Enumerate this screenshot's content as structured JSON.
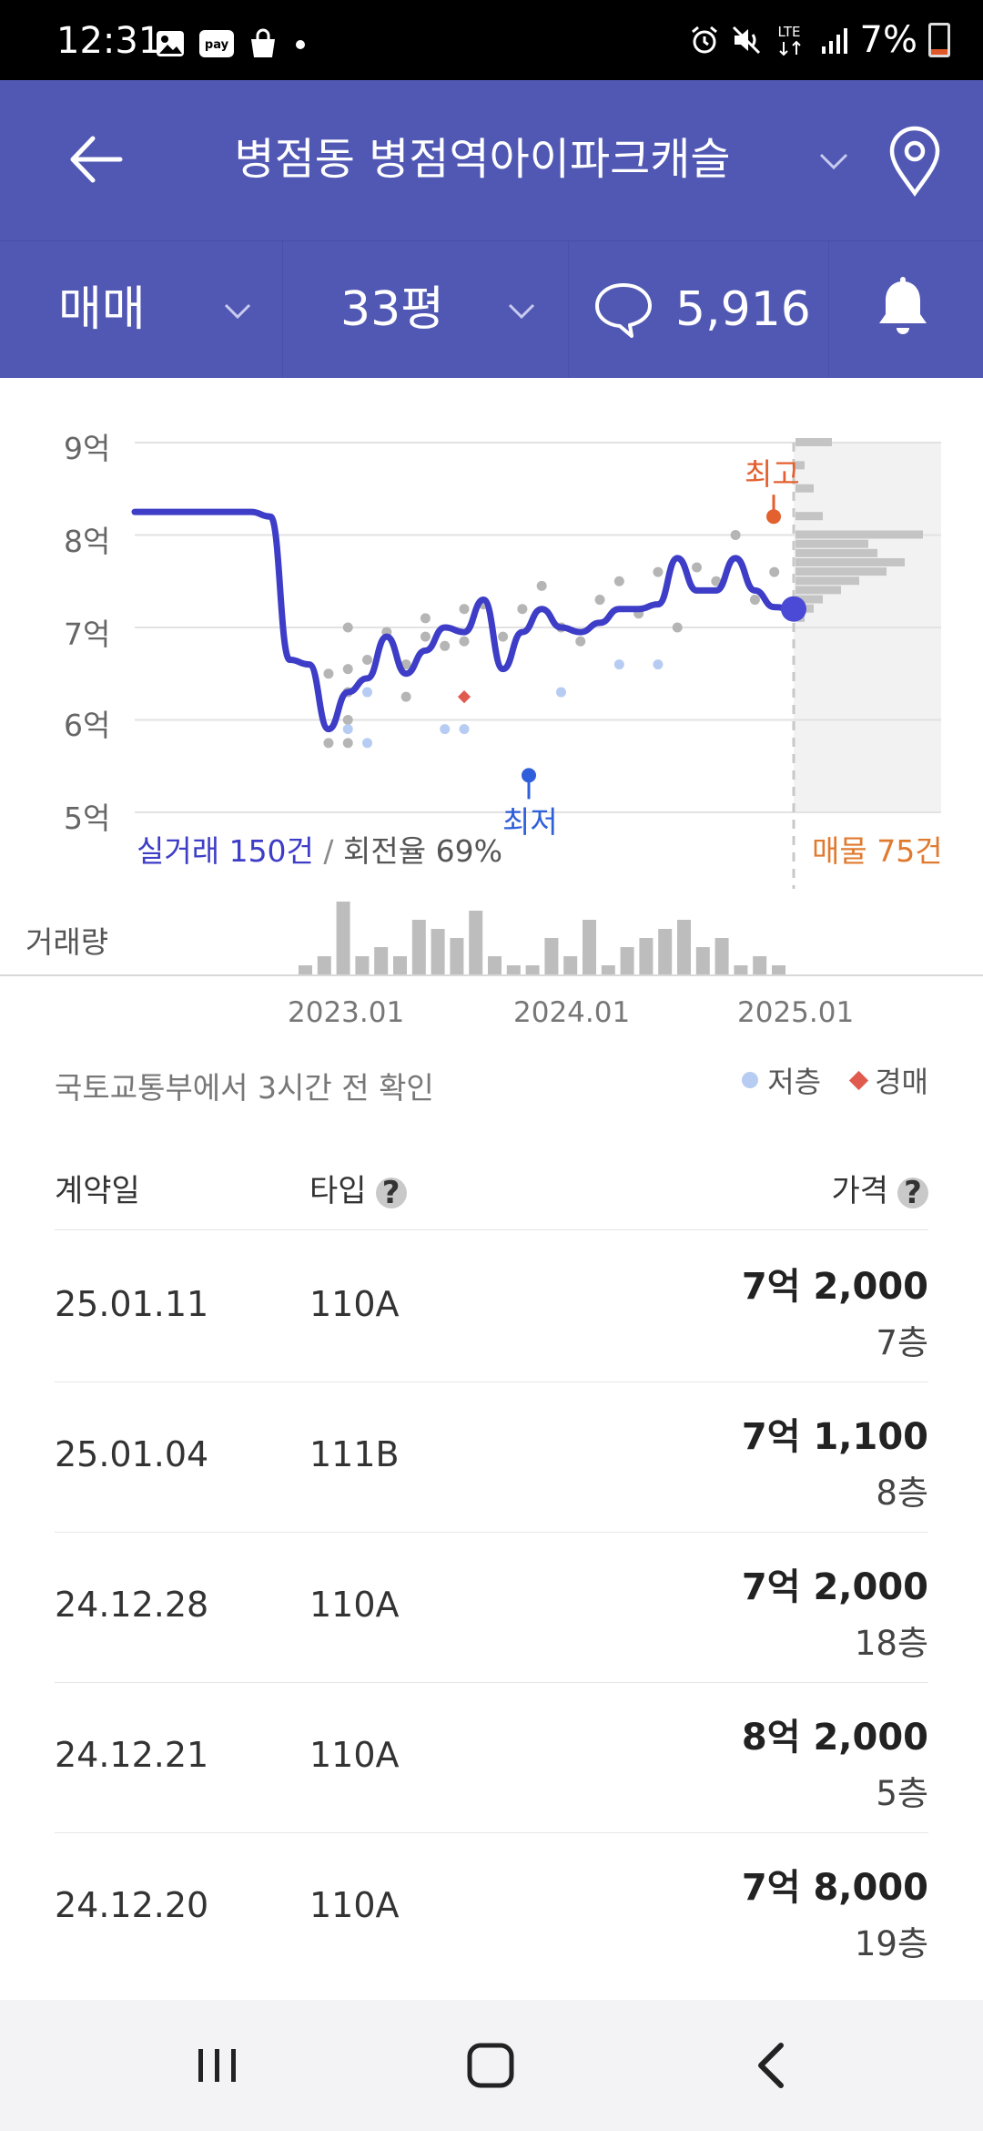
{
  "status_bar": {
    "time": "12:31",
    "battery": "7%",
    "network": "LTE",
    "icons_left": [
      "image-icon",
      "pay-icon",
      "shopping-bag-icon",
      "dot-icon"
    ],
    "pay_text": "pay",
    "icons_right": [
      "alarm-icon",
      "mute-icon",
      "lte-icon",
      "signal-icon",
      "battery-icon"
    ]
  },
  "header": {
    "title": "병점동 병점역아이파크캐슬"
  },
  "filters": {
    "trade_type": "매매",
    "size": "33평",
    "comments": "5,916"
  },
  "chart": {
    "y_ticks": [
      "9억",
      "8억",
      "7억",
      "6억",
      "5억"
    ],
    "high_label": "최고",
    "low_label": "최저",
    "real_trades": "실거래 150건",
    "separator": "/",
    "turnover": "회전율 69%",
    "listings": "매물 75건",
    "volume_label": "거래량",
    "x_ticks": [
      "2023.01",
      "2024.01",
      "2025.01"
    ],
    "colors": {
      "line": "#3d3dc7",
      "high": "#e3602f",
      "low": "#2f5fdb",
      "dots": "#b5b5b5",
      "low_floor": "#b7ccf2",
      "auction": "#e05a4e",
      "listing_bars": "#c4c4c4"
    }
  },
  "chart_data": {
    "type": "line",
    "title": "",
    "ylabel": "",
    "y_unit": "억",
    "ylim": [
      5,
      9
    ],
    "series": [
      {
        "x": [
          "2022.03",
          "2022.06",
          "2022.09",
          "2022.10",
          "2022.11",
          "2022.12",
          "2023.01",
          "2023.02",
          "2023.03",
          "2023.04",
          "2023.05",
          "2023.06",
          "2023.07",
          "2023.08",
          "2023.09",
          "2023.10",
          "2023.11",
          "2023.12",
          "2024.01",
          "2024.02",
          "2024.03",
          "2024.04",
          "2024.05",
          "2024.06",
          "2024.07",
          "2024.08",
          "2024.09",
          "2024.10",
          "2024.11",
          "2024.12",
          "2025.01"
        ],
        "y": [
          8.25,
          8.25,
          8.25,
          8.2,
          6.65,
          6.6,
          5.9,
          6.3,
          6.45,
          6.9,
          6.5,
          6.75,
          7.0,
          6.95,
          7.3,
          6.55,
          6.95,
          7.2,
          7.0,
          6.95,
          7.05,
          7.2,
          7.2,
          7.25,
          7.75,
          7.4,
          7.4,
          7.75,
          7.4,
          7.22,
          7.2
        ]
      }
    ],
    "highest": 8.2,
    "lowest": 5.4,
    "volume": [
      1,
      2,
      8,
      2,
      3,
      2,
      6,
      5,
      4,
      7,
      2,
      1,
      1,
      4,
      2,
      6,
      1,
      3,
      4,
      5,
      6,
      3,
      4,
      1,
      2,
      1
    ],
    "listing_distribution": [
      {
        "price": 9.0,
        "count": 4
      },
      {
        "price": 8.75,
        "count": 1
      },
      {
        "price": 8.5,
        "count": 2
      },
      {
        "price": 8.2,
        "count": 3
      },
      {
        "price": 8.0,
        "count": 14
      },
      {
        "price": 7.9,
        "count": 8
      },
      {
        "price": 7.8,
        "count": 9
      },
      {
        "price": 7.7,
        "count": 12
      },
      {
        "price": 7.6,
        "count": 10
      },
      {
        "price": 7.5,
        "count": 7
      },
      {
        "price": 7.4,
        "count": 5
      },
      {
        "price": 7.3,
        "count": 3
      },
      {
        "price": 7.2,
        "count": 2
      },
      {
        "price": 7.1,
        "count": 1
      }
    ],
    "trade_dots": [
      {
        "x": "2023.01",
        "y": 5.75
      },
      {
        "x": "2023.01",
        "y": 6.5
      },
      {
        "x": "2023.02",
        "y": 6.0
      },
      {
        "x": "2023.02",
        "y": 6.3
      },
      {
        "x": "2023.02",
        "y": 6.55
      },
      {
        "x": "2023.02",
        "y": 7.0
      },
      {
        "x": "2023.02",
        "y": 5.75
      },
      {
        "x": "2023.03",
        "y": 6.65
      },
      {
        "x": "2023.04",
        "y": 6.95
      },
      {
        "x": "2023.05",
        "y": 6.6
      },
      {
        "x": "2023.05",
        "y": 6.25
      },
      {
        "x": "2023.06",
        "y": 7.1
      },
      {
        "x": "2023.06",
        "y": 6.9
      },
      {
        "x": "2023.07",
        "y": 6.8
      },
      {
        "x": "2023.08",
        "y": 7.2
      },
      {
        "x": "2023.08",
        "y": 6.85
      },
      {
        "x": "2023.09",
        "y": 7.25
      },
      {
        "x": "2023.10",
        "y": 6.9
      },
      {
        "x": "2023.11",
        "y": 7.2
      },
      {
        "x": "2023.12",
        "y": 7.45
      },
      {
        "x": "2024.01",
        "y": 7.0
      },
      {
        "x": "2024.02",
        "y": 6.85
      },
      {
        "x": "2024.03",
        "y": 7.3
      },
      {
        "x": "2024.04",
        "y": 7.5
      },
      {
        "x": "2024.05",
        "y": 7.15
      },
      {
        "x": "2024.06",
        "y": 7.6
      },
      {
        "x": "2024.07",
        "y": 7.0
      },
      {
        "x": "2024.08",
        "y": 7.65
      },
      {
        "x": "2024.09",
        "y": 7.5
      },
      {
        "x": "2024.10",
        "y": 8.0
      },
      {
        "x": "2024.11",
        "y": 7.3
      },
      {
        "x": "2024.12",
        "y": 7.6
      }
    ],
    "low_floor_dots": [
      {
        "x": "2023.02",
        "y": 5.9
      },
      {
        "x": "2023.03",
        "y": 6.3
      },
      {
        "x": "2023.03",
        "y": 5.75
      },
      {
        "x": "2023.07",
        "y": 5.9
      },
      {
        "x": "2023.08",
        "y": 5.9
      },
      {
        "x": "2024.01",
        "y": 6.3
      },
      {
        "x": "2024.04",
        "y": 6.6
      },
      {
        "x": "2024.06",
        "y": 6.6
      }
    ],
    "auction_dots": [
      {
        "x": "2023.08",
        "y": 6.25
      }
    ],
    "x_range": [
      "2022.03",
      "2025.01"
    ]
  },
  "source_note": "국토교통부에서 3시간 전 확인",
  "legend": {
    "low_floor": "저층",
    "auction": "경매"
  },
  "table": {
    "headers": {
      "date": "계약일",
      "type": "타입",
      "price": "가격",
      "help": "?"
    },
    "rows": [
      {
        "date": "25.01.11",
        "type": "110A",
        "price": "7억 2,000",
        "floor": "7층"
      },
      {
        "date": "25.01.04",
        "type": "111B",
        "price": "7억 1,100",
        "floor": "8층"
      },
      {
        "date": "24.12.28",
        "type": "110A",
        "price": "7억 2,000",
        "floor": "18층"
      },
      {
        "date": "24.12.21",
        "type": "110A",
        "price": "8억 2,000",
        "floor": "5층"
      },
      {
        "date": "24.12.20",
        "type": "110A",
        "price": "7억 8,000",
        "floor": "19층"
      }
    ]
  }
}
